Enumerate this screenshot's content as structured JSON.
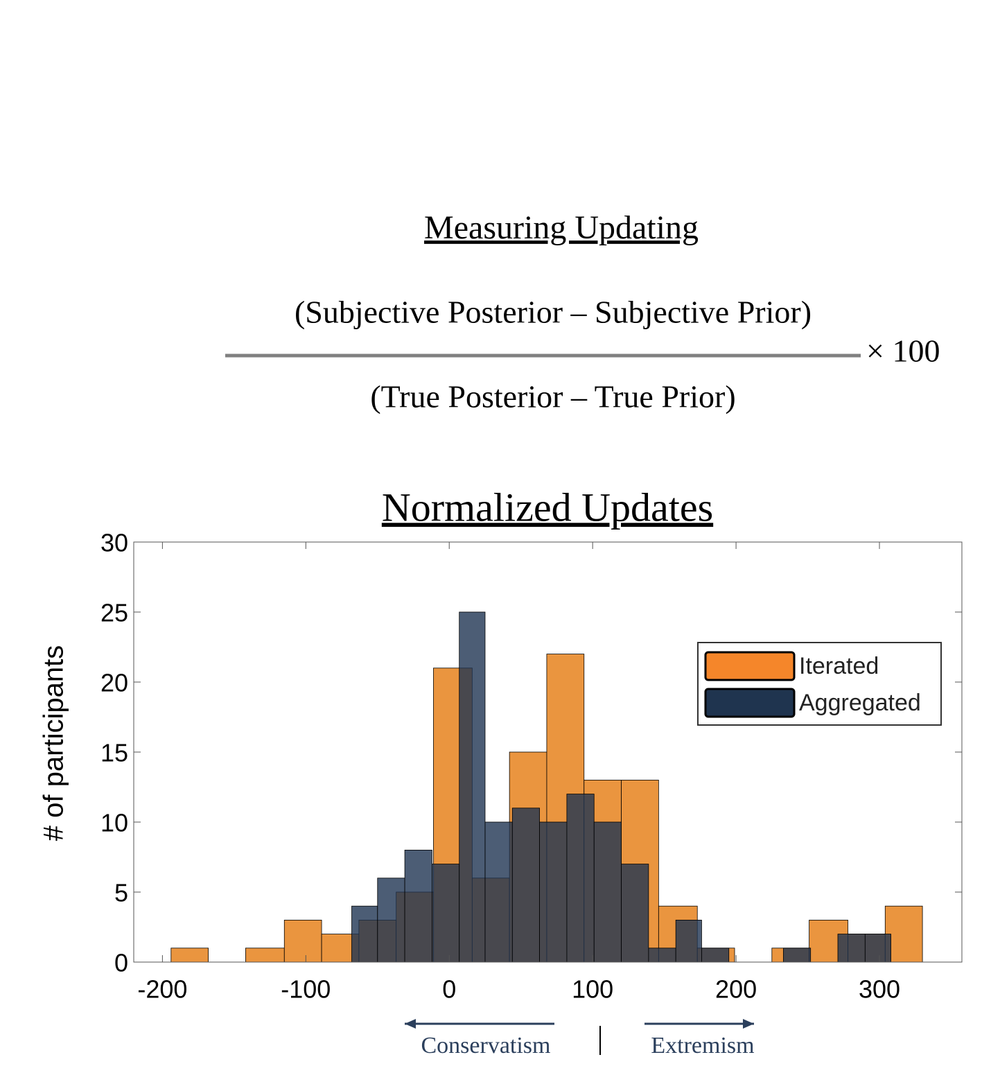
{
  "formula": {
    "heading": "Measuring Updating",
    "numerator": "(Subjective Posterior – Subjective Prior)",
    "denominator": "(True Posterior – True Prior)",
    "multiplier": "× 100"
  },
  "chart_data": {
    "type": "histogram",
    "title": "Normalized Updates",
    "ylabel": "# of participants",
    "xlim": [
      -220,
      357.5
    ],
    "ylim": [
      0,
      30
    ],
    "xticks": [
      -200,
      -100,
      0,
      100,
      200,
      300
    ],
    "yticks": [
      0,
      5,
      10,
      15,
      20,
      25,
      30
    ],
    "legend": "upper right",
    "annotations": [
      "Conservatism",
      "Extremism"
    ],
    "series": [
      {
        "name": "Iterated",
        "color": "#e8892a",
        "legend_color": "#f5862a",
        "bins": [
          -194,
          -168,
          -142,
          -115,
          -89,
          -63,
          -37,
          -11,
          16,
          42,
          68,
          94,
          120,
          146,
          173,
          199,
          225,
          251,
          278,
          304,
          330
        ],
        "values": [
          1,
          0,
          1,
          3,
          2,
          3,
          5,
          21,
          6,
          15,
          22,
          13,
          13,
          4,
          1,
          0,
          1,
          3,
          2,
          4
        ]
      },
      {
        "name": "Aggregated",
        "color": "#1f3552",
        "legend_color": "#1f344f",
        "bins": [
          -68,
          -50,
          -31,
          -12,
          7,
          25,
          44,
          63,
          82,
          101,
          120,
          139,
          158,
          176,
          195,
          214,
          233,
          252,
          271,
          290,
          308
        ],
        "values": [
          4,
          6,
          8,
          7,
          25,
          10,
          11,
          10,
          12,
          10,
          7,
          1,
          3,
          1,
          0,
          0,
          1,
          0,
          2,
          2
        ]
      }
    ]
  }
}
